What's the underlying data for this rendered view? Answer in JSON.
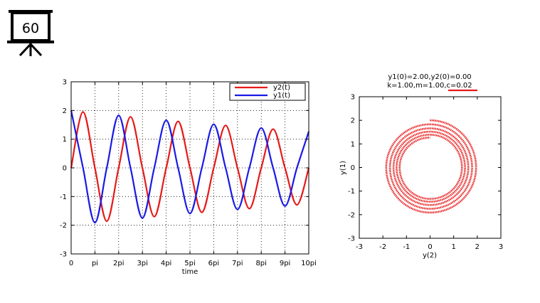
{
  "badge": {
    "number": "60",
    "icon": "presentation-board-icon"
  },
  "colors": {
    "y1": "#1a1ae6",
    "y2": "#e61a1a"
  },
  "chart_data": [
    {
      "type": "line",
      "xlabel": "time",
      "ylabel": "",
      "xlim": [
        0,
        31.4159
      ],
      "ylim": [
        -3,
        3
      ],
      "x_tick_labels": [
        "0",
        "pi",
        "2pi",
        "3pi",
        "4pi",
        "5pi",
        "6pi",
        "7pi",
        "8pi",
        "9pi",
        "10pi"
      ],
      "y_tick_labels": [
        "-3",
        "-2",
        "-1",
        "0",
        "1",
        "2",
        "3"
      ],
      "grid": true,
      "legend_position": "top-right",
      "series": [
        {
          "name": "y2(t)",
          "color": "#e61a1a",
          "x": [
            0,
            1.57,
            3.14,
            4.71,
            6.28,
            7.85,
            9.42,
            10.99,
            12.57,
            14.14,
            15.71,
            17.28,
            18.85,
            20.42,
            21.99,
            23.56,
            25.13,
            26.7,
            28.27,
            29.85,
            31.42
          ],
          "values": [
            0.0,
            1.95,
            0.0,
            -1.86,
            0.0,
            1.78,
            0.0,
            -1.7,
            0.0,
            1.62,
            0.0,
            -1.55,
            0.0,
            1.48,
            0.0,
            -1.42,
            0.0,
            1.35,
            0.0,
            -1.29,
            0.0
          ]
        },
        {
          "name": "y1(t)",
          "color": "#1a1ae6",
          "x": [
            0,
            1.57,
            3.14,
            4.71,
            6.28,
            7.85,
            9.42,
            10.99,
            12.57,
            14.14,
            15.71,
            17.28,
            18.85,
            20.42,
            21.99,
            23.56,
            25.13,
            26.7,
            28.27,
            29.85,
            31.42
          ],
          "values": [
            2.0,
            0.0,
            -1.91,
            0.0,
            1.83,
            0.0,
            -1.75,
            0.0,
            1.66,
            0.0,
            -1.59,
            0.0,
            1.52,
            0.0,
            -1.45,
            0.0,
            1.39,
            0.0,
            -1.33,
            0.0,
            1.27
          ]
        }
      ]
    },
    {
      "type": "line",
      "title": "y1(0)=2.00,y2(0)=0.00",
      "subtitle": "k=1.00,m=1.00,c=0.02",
      "xlabel": "y(2)",
      "ylabel": "y(1)",
      "xlim": [
        -3,
        3
      ],
      "ylim": [
        -3,
        3
      ],
      "x_tick_labels": [
        "-3",
        "-2",
        "-1",
        "0",
        "1",
        "2",
        "3"
      ],
      "y_tick_labels": [
        "-3",
        "-2",
        "-1",
        "0",
        "1",
        "2",
        "3"
      ],
      "grid": false,
      "series": [
        {
          "color": "#e61a1a",
          "x": [
            0.0,
            1.95,
            0.0,
            -1.86,
            0.0,
            1.78,
            0.0,
            -1.7,
            0.0,
            1.62,
            0.0,
            -1.55,
            0.0,
            1.48,
            0.0,
            -1.42,
            0.0,
            1.35,
            0.0,
            -1.29,
            0.0
          ],
          "y": [
            2.0,
            0.0,
            -1.91,
            0.0,
            1.83,
            0.0,
            -1.75,
            0.0,
            1.66,
            0.0,
            -1.59,
            0.0,
            1.52,
            0.0,
            -1.45,
            0.0,
            1.39,
            0.0,
            -1.33,
            0.0,
            1.27
          ]
        }
      ]
    }
  ]
}
